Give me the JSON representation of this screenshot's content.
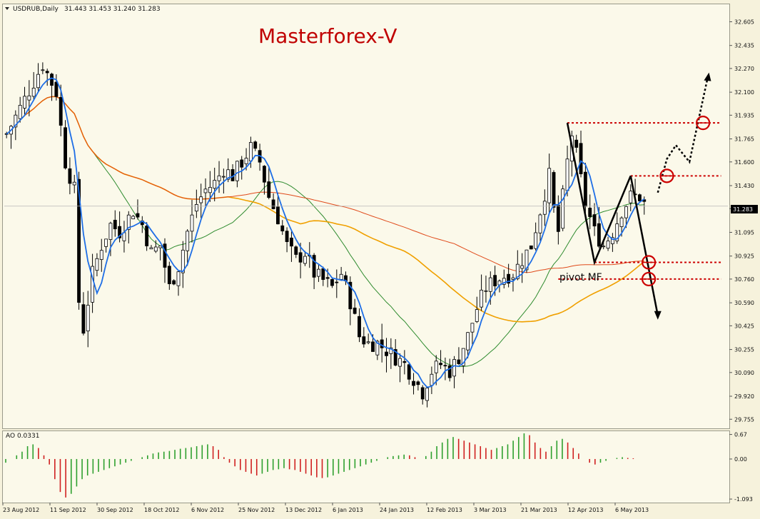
{
  "header": {
    "symbol": "USDRUB,Daily",
    "ohlc": "31.443 31.453 31.240 31.283"
  },
  "watermark": "Masterforex-V",
  "annotation": "pivot MF",
  "current_price_label": "31.283",
  "indicator": {
    "label": "AO 0.0331"
  },
  "colors": {
    "background": "#f6f2dc",
    "candle": "#000000",
    "ema_fast": "#1e6ee6",
    "ma_mid": "#2e8b2e",
    "ma_slow": "#f0a000",
    "ma_long": "#e04a1a",
    "level": "#cc0000",
    "ao_up": "#2ea02e",
    "ao_down": "#d02020",
    "watermark": "#c00000"
  },
  "chart_data": [
    {
      "type": "candlestick",
      "title": "USDRUB,Daily",
      "y_ticks": [
        "32.605",
        "32.435",
        "32.270",
        "32.100",
        "31.935",
        "31.765",
        "31.600",
        "31.430",
        "31.265",
        "31.095",
        "30.925",
        "30.760",
        "30.590",
        "30.425",
        "30.255",
        "30.090",
        "29.920",
        "29.755"
      ],
      "ylim": [
        29.7,
        32.72
      ],
      "x_ticks": [
        "23 Aug 2012",
        "11 Sep 2012",
        "30 Sep 2012",
        "18 Oct 2012",
        "6 Nov 2012",
        "25 Nov 2012",
        "13 Dec 2012",
        "6 Jan 2013",
        "24 Jan 2013",
        "12 Feb 2013",
        "3 Mar 2013",
        "21 Mar 2013",
        "12 Apr 2013",
        "6 May 2013"
      ],
      "close_path": [
        [
          0,
          31.8
        ],
        [
          4,
          32.05
        ],
        [
          8,
          32.3
        ],
        [
          11,
          32.1
        ],
        [
          13,
          31.6
        ],
        [
          15,
          31.4
        ],
        [
          16,
          30.6
        ],
        [
          17,
          30.4
        ],
        [
          19,
          30.8
        ],
        [
          21,
          31.0
        ],
        [
          23,
          31.15
        ],
        [
          25,
          31.1
        ],
        [
          28,
          31.25
        ],
        [
          30,
          31.15
        ],
        [
          32,
          30.95
        ],
        [
          34,
          31.0
        ],
        [
          36,
          30.7
        ],
        [
          38,
          30.85
        ],
        [
          40,
          31.1
        ],
        [
          42,
          31.3
        ],
        [
          44,
          31.4
        ],
        [
          46,
          31.45
        ],
        [
          48,
          31.55
        ],
        [
          50,
          31.5
        ],
        [
          52,
          31.6
        ],
        [
          54,
          31.7
        ],
        [
          56,
          31.6
        ],
        [
          58,
          31.35
        ],
        [
          60,
          31.2
        ],
        [
          62,
          31.0
        ],
        [
          64,
          30.9
        ],
        [
          66,
          30.95
        ],
        [
          68,
          30.8
        ],
        [
          70,
          30.75
        ],
        [
          72,
          30.7
        ],
        [
          74,
          30.8
        ],
        [
          76,
          30.6
        ],
        [
          78,
          30.35
        ],
        [
          80,
          30.3
        ],
        [
          82,
          30.3
        ],
        [
          84,
          30.25
        ],
        [
          86,
          30.2
        ],
        [
          88,
          30.15
        ],
        [
          90,
          30.05
        ],
        [
          92,
          29.95
        ],
        [
          94,
          30.1
        ],
        [
          96,
          30.15
        ],
        [
          98,
          30.1
        ],
        [
          100,
          30.2
        ],
        [
          102,
          30.35
        ],
        [
          104,
          30.55
        ],
        [
          106,
          30.7
        ],
        [
          108,
          30.75
        ],
        [
          110,
          30.78
        ],
        [
          112,
          30.8
        ],
        [
          114,
          30.9
        ],
        [
          116,
          31.0
        ],
        [
          118,
          31.25
        ],
        [
          120,
          31.5
        ],
        [
          121,
          31.25
        ],
        [
          122,
          31.1
        ],
        [
          124,
          31.6
        ],
        [
          125,
          31.8
        ],
        [
          126,
          31.65
        ],
        [
          128,
          31.3
        ],
        [
          130,
          31.1
        ],
        [
          132,
          31.0
        ],
        [
          134,
          31.1
        ],
        [
          136,
          31.25
        ],
        [
          138,
          31.35
        ],
        [
          140,
          31.35
        ],
        [
          141,
          31.3
        ]
      ],
      "series": [
        {
          "name": "",
          "period_bars": 5,
          "color": "#1e6ee6"
        },
        {
          "name": "",
          "period_bars": 20,
          "color": "#2e8b2e"
        },
        {
          "name": "",
          "period_bars": 50,
          "color": "#f0a000"
        },
        {
          "name": "",
          "period_bars": 100,
          "color": "#e04a1a"
        }
      ],
      "forecast_up": [
        [
          144,
          31.38
        ],
        [
          146,
          31.62
        ],
        [
          148,
          31.72
        ],
        [
          151,
          31.6
        ],
        [
          155,
          32.2
        ]
      ],
      "forecast_down": [
        [
          138,
          31.5
        ],
        [
          144,
          30.5
        ]
      ],
      "legs": [
        [
          [
            124,
            31.88
          ],
          [
            130,
            30.88
          ],
          [
            138,
            31.5
          ]
        ]
      ],
      "levels": [
        31.88,
        31.5,
        30.88,
        30.76
      ],
      "circles": [
        [
          154,
          31.88
        ],
        [
          146,
          31.5
        ],
        [
          142,
          30.88
        ],
        [
          142,
          30.76
        ]
      ],
      "price_line": 31.283
    },
    {
      "type": "bar",
      "title": "AO 0.0331",
      "y_ticks": [
        "0.67",
        "0.00",
        "-1.093"
      ],
      "ylim": [
        -1.15,
        0.72
      ],
      "values": [
        -0.1,
        0.0,
        0.1,
        0.2,
        0.35,
        0.4,
        0.3,
        0.1,
        -0.15,
        -0.55,
        -0.9,
        -1.05,
        -0.95,
        -0.75,
        -0.55,
        -0.45,
        -0.4,
        -0.35,
        -0.3,
        -0.25,
        -0.2,
        -0.15,
        -0.1,
        -0.05,
        0.0,
        0.05,
        0.1,
        0.15,
        0.18,
        0.2,
        0.22,
        0.25,
        0.28,
        0.3,
        0.32,
        0.35,
        0.38,
        0.4,
        0.35,
        0.25,
        0.05,
        -0.1,
        -0.2,
        -0.3,
        -0.35,
        -0.4,
        -0.45,
        -0.4,
        -0.35,
        -0.3,
        -0.28,
        -0.25,
        -0.28,
        -0.3,
        -0.35,
        -0.4,
        -0.45,
        -0.5,
        -0.52,
        -0.5,
        -0.45,
        -0.4,
        -0.35,
        -0.3,
        -0.25,
        -0.2,
        -0.15,
        -0.1,
        -0.05,
        0.0,
        0.05,
        0.08,
        0.1,
        0.12,
        0.1,
        0.05,
        0.0,
        0.08,
        0.2,
        0.35,
        0.45,
        0.55,
        0.6,
        0.55,
        0.5,
        0.45,
        0.4,
        0.35,
        0.3,
        0.25,
        0.3,
        0.35,
        0.4,
        0.5,
        0.6,
        0.7,
        0.65,
        0.45,
        0.3,
        0.2,
        0.35,
        0.5,
        0.55,
        0.45,
        0.3,
        0.15,
        0.0,
        -0.1,
        -0.15,
        -0.1,
        -0.05,
        0.0,
        0.03,
        0.05,
        0.03,
        0.02
      ]
    }
  ]
}
